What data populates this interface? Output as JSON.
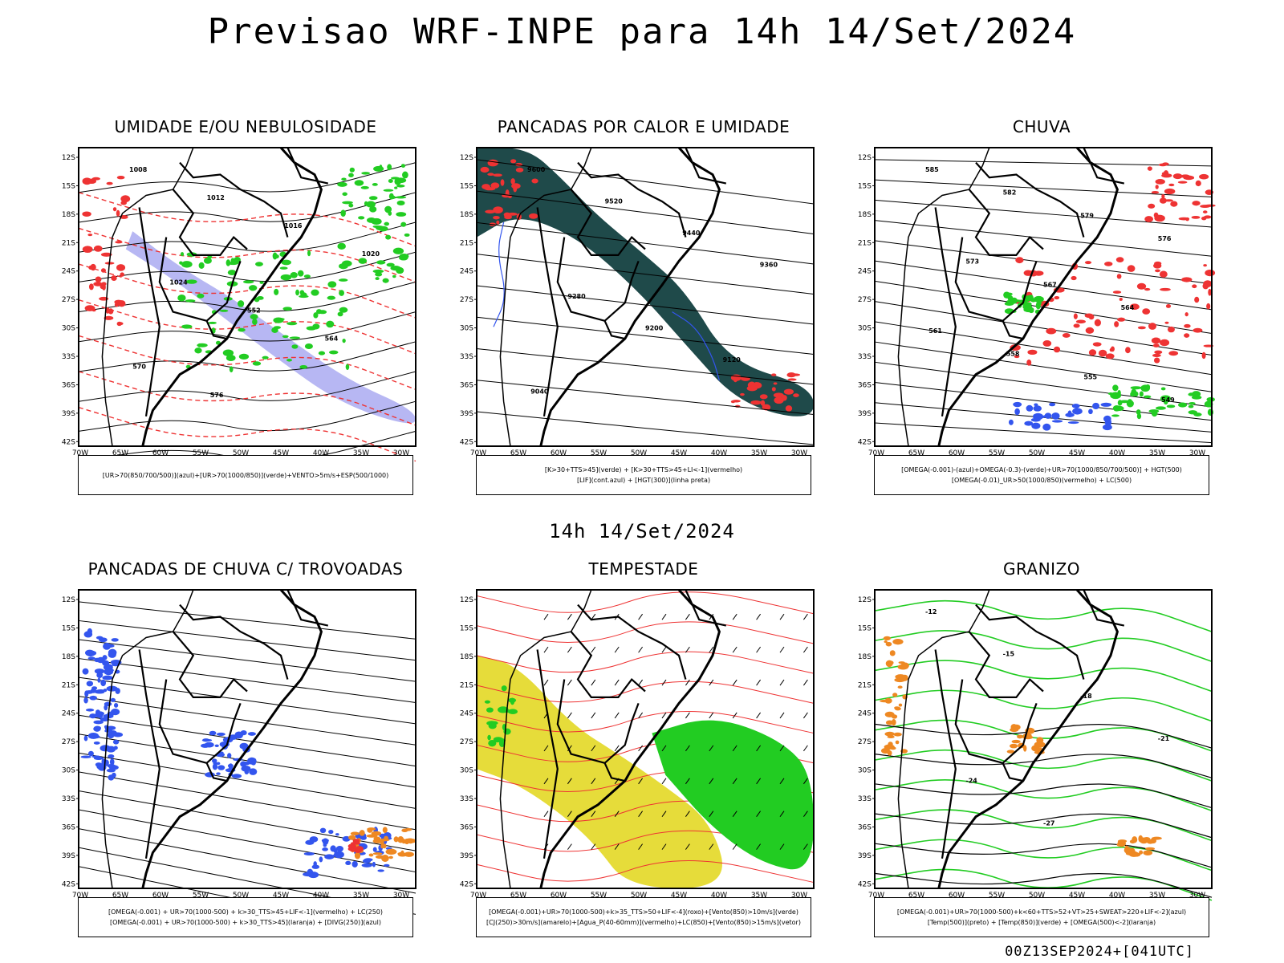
{
  "title": "Previsao WRF-INPE  para 14h 14/Set/2024",
  "subtitle": "14h 14/Set/2024",
  "footer": "00Z13SEP2024+[041UTC]",
  "axes": {
    "lat_labels": [
      "12S",
      "15S",
      "18S",
      "21S",
      "24S",
      "27S",
      "30S",
      "33S",
      "36S",
      "39S",
      "42S"
    ],
    "lon_labels": [
      "70W",
      "65W",
      "60W",
      "55W",
      "50W",
      "45W",
      "40W",
      "35W",
      "30W"
    ]
  },
  "colors": {
    "blue": "#3355ee",
    "green": "#22cc22",
    "red": "#ee3333",
    "orange": "#ee8822",
    "yellow": "#e6dc3a",
    "teal": "#1f4a4a",
    "lavender": "#9999ee"
  },
  "panels": [
    {
      "title": "UMIDADE E/OU NEBULOSIDADE",
      "legend": [
        "[UR>70(850/700/500)](azul)+[UR>70(1000/850)](verde)+VENTO>5m/s+ESP(500/1000)"
      ],
      "contour_labels": [
        "1008",
        "1012",
        "1016",
        "1020",
        "1024",
        "552",
        "564",
        "570",
        "576"
      ]
    },
    {
      "title": "PANCADAS POR CALOR E UMIDADE",
      "legend": [
        "[K>30+TTS>45](verde) + [K>30+TTS>45+LI<-1](vermelho)",
        "[LIF](cont.azul) + [HGT(300)](linha preta)"
      ],
      "contour_labels": [
        "9600",
        "9520",
        "9440",
        "9360",
        "9280",
        "9200",
        "9120",
        "9040"
      ]
    },
    {
      "title": "CHUVA",
      "legend": [
        "[OMEGA(-0.001)-(azul)+OMEGA(-0.3)-(verde)+UR>70(1000/850/700/500)] + HGT(500)",
        "[OMEGA(-0.01)_UR>50(1000/850)(vermelho) + LC(500)"
      ],
      "contour_labels": [
        "585",
        "582",
        "579",
        "576",
        "573",
        "567",
        "564",
        "561",
        "558",
        "555",
        "549"
      ]
    },
    {
      "title": "PANCADAS DE CHUVA C/ TROVOADAS",
      "legend": [
        "[OMEGA(-0.001) + UR>70(1000-500) + k>30_TTS>45+LIF<-1](vermelho) + LC(250)",
        "[OMEGA(-0.001) + UR>70(1000-500) + k>30_TTS>45](laranja) + [DIVG(250)](azul)"
      ],
      "contour_labels": []
    },
    {
      "title": "TEMPESTADE",
      "legend": [
        "[OMEGA(-0.001)+UR>70(1000-500)+k>35_TTS>50+LIF<-4](roxo)+[Vento(850)>10m/s](verde)",
        "[CJ(250)>30m/s](amarelo)+[Agua_P(40-60mm)](vermelho)+LC(850)+[Vento(850)>15m/s](vetor)"
      ],
      "contour_labels": []
    },
    {
      "title": "GRANIZO",
      "legend": [
        "[OMEGA(-0.001)+UR>70(1000-500)+k<60+TTS>52+VT>25+SWEAT>220+LIF<-2](azul)",
        "[Temp(500)](preto) + [Temp(850)](verde) + [OMEGA(500)<-2](laranja)"
      ],
      "contour_labels": [
        "-12",
        "-15",
        "-18",
        "-21",
        "-24",
        "-27"
      ]
    }
  ]
}
